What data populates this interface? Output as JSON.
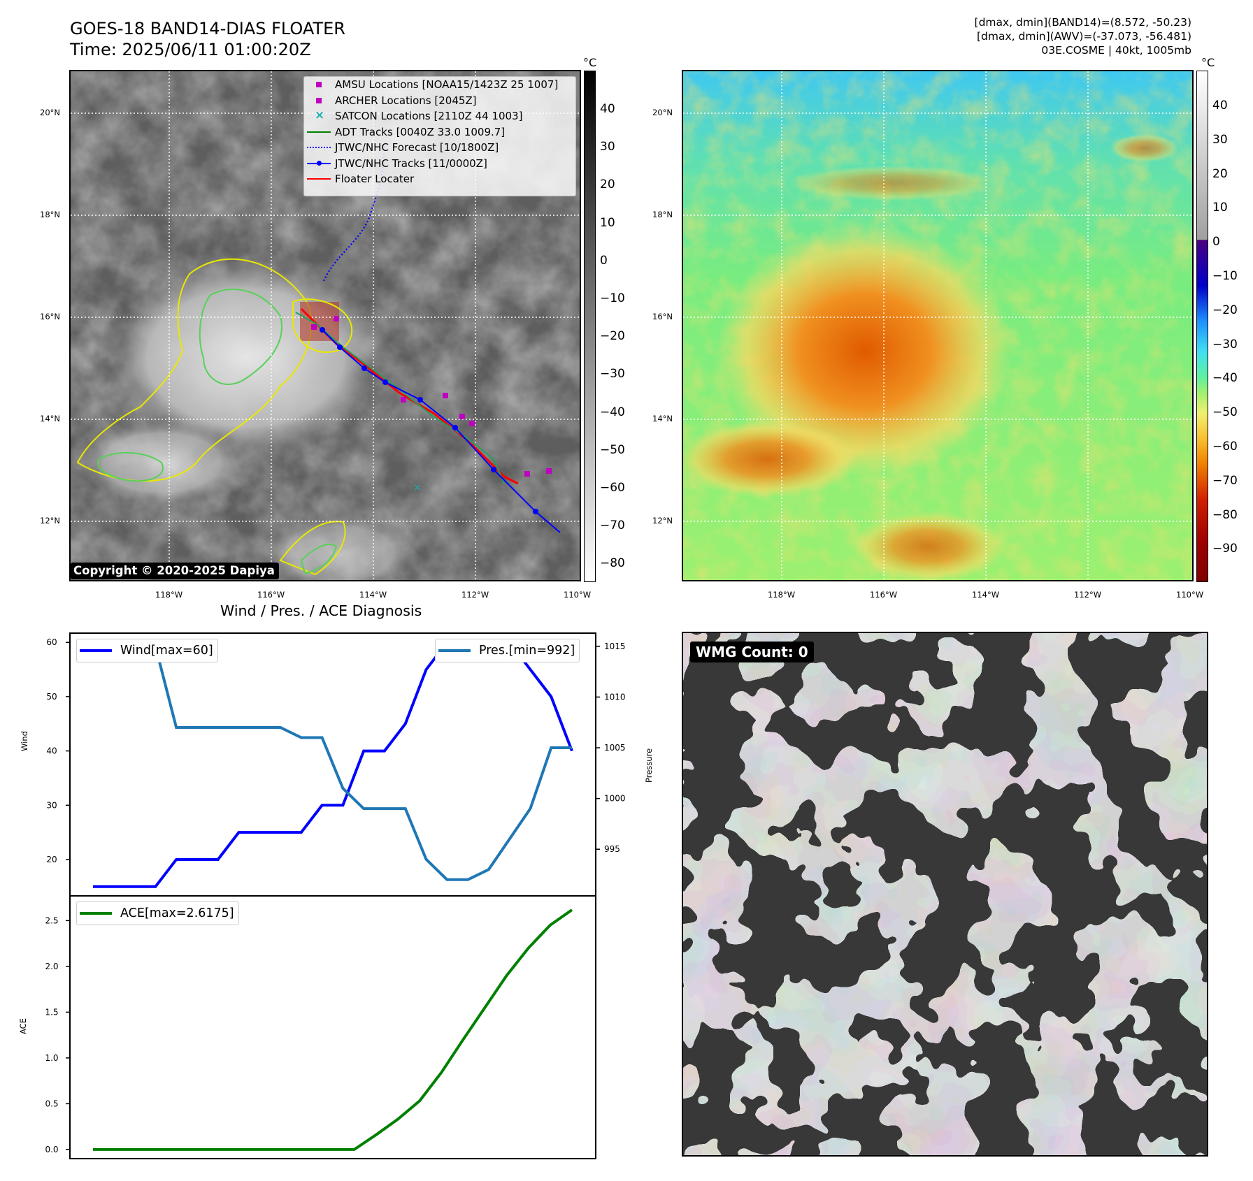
{
  "header": {
    "title_line1": "GOES-18 BAND14-DIAS FLOATER",
    "title_line2": "Time: 2025/06/11 01:00:20Z",
    "info_line1": "[dmax, dmin](BAND14)=(8.572, -50.23)",
    "info_line2": "[dmax, dmin](AWV)=(-37.073, -56.481)",
    "info_line3": "03E.COSME | 40kt, 1005mb"
  },
  "ir_panel": {
    "copyright": "Copyright © 2020-2025 Dapiya",
    "lat_labels": [
      "20°N",
      "18°N",
      "16°N",
      "14°N",
      "12°N"
    ],
    "lon_labels": [
      "118°W",
      "116°W",
      "114°W",
      "112°W",
      "110°W"
    ],
    "colorbar_unit": "°C",
    "colorbar_ticks": [
      "40",
      "30",
      "20",
      "10",
      "0",
      "−10",
      "−20",
      "−30",
      "−40",
      "−50",
      "−60",
      "−70",
      "−80"
    ],
    "legend": [
      {
        "label": "AMSU Locations [NOAA15/1423Z 25 1007]",
        "kind": "square",
        "color": "#c000c0"
      },
      {
        "label": "ARCHER Locations [2045Z]",
        "kind": "square",
        "color": "#c000c0"
      },
      {
        "label": "SATCON Locations [2110Z 44 1003]",
        "kind": "cross",
        "color": "#20b0b0"
      },
      {
        "label": "ADT Tracks [0040Z 33.0 1009.7]",
        "kind": "line",
        "color": "#008000"
      },
      {
        "label": "JTWC/NHC Forecast [10/1800Z]",
        "kind": "dotted",
        "color": "#0000ff"
      },
      {
        "label": "JTWC/NHC Tracks [11/0000Z]",
        "kind": "linedot",
        "color": "#0000ff"
      },
      {
        "label": "Floater Locater",
        "kind": "line",
        "color": "#ff0000"
      }
    ]
  },
  "wv_panel": {
    "lat_labels": [
      "20°N",
      "18°N",
      "16°N",
      "14°N",
      "12°N"
    ],
    "lon_labels": [
      "118°W",
      "116°W",
      "114°W",
      "112°W",
      "110°W"
    ],
    "colorbar_unit": "°C",
    "colorbar_ticks": [
      "40",
      "30",
      "20",
      "10",
      "0",
      "−10",
      "−20",
      "−30",
      "−40",
      "−50",
      "−60",
      "−70",
      "−80",
      "−90"
    ]
  },
  "wmg_panel": {
    "label": "WMG Count: 0"
  },
  "chart_data": [
    {
      "type": "line",
      "title": "Wind / Pres. / ACE Diagnosis",
      "ylabel": "Wind",
      "ylabel2": "Pressure",
      "ylim": [
        13.3,
        61.7
      ],
      "ylim2": [
        990.4,
        1016.3
      ],
      "yticks": [
        20,
        30,
        40,
        50,
        60
      ],
      "yticks2": [
        995,
        1000,
        1005,
        1010,
        1015
      ],
      "series": [
        {
          "name": "Wind[max=60]",
          "axis": "left",
          "color": "#0000ff",
          "values": [
            15,
            15,
            15,
            15,
            20,
            20,
            20,
            25,
            25,
            25,
            25,
            30,
            30,
            40,
            40,
            45,
            55,
            60,
            60,
            60,
            60,
            55,
            50,
            40
          ]
        },
        {
          "name": "Pres.[min=992]",
          "axis": "right",
          "color": "#1f77b4",
          "values": [
            1015,
            1015,
            1015,
            1015,
            1007,
            1007,
            1007,
            1007,
            1007,
            1007,
            1006,
            1006,
            1001,
            999,
            999,
            999,
            994,
            992,
            992,
            993,
            996,
            999,
            1005,
            1005
          ]
        }
      ]
    },
    {
      "type": "line",
      "ylabel": "ACE",
      "ylim": [
        -0.1,
        2.77
      ],
      "yticks": [
        "0.0",
        "0.5",
        "1.0",
        "1.5",
        "2.0",
        "2.5"
      ],
      "series": [
        {
          "name": "ACE[max=2.6175]",
          "color": "#008000",
          "values": [
            0,
            0,
            0,
            0,
            0,
            0,
            0,
            0,
            0,
            0,
            0,
            0,
            0,
            0.16,
            0.33,
            0.53,
            0.84,
            1.2,
            1.55,
            1.9,
            2.2,
            2.45,
            2.6175
          ]
        }
      ]
    }
  ]
}
